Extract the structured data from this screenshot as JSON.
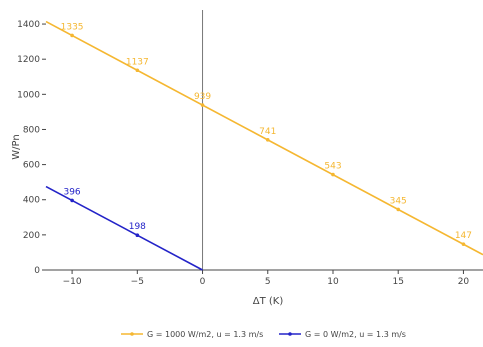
{
  "chart_data": {
    "type": "line",
    "xlabel": "ΔT (K)",
    "ylabel": "W/Pn",
    "xlim": [
      -12,
      21.5
    ],
    "ylim": [
      0,
      1480
    ],
    "x_ticks": [
      -10,
      -5,
      0,
      5,
      10,
      15,
      20
    ],
    "x_tick_labels": [
      "−10",
      "−5",
      "0",
      "5",
      "10",
      "15",
      "20"
    ],
    "y_ticks": [
      0,
      200,
      400,
      600,
      800,
      1000,
      1200,
      1400
    ],
    "y_tick_labels": [
      "0",
      "200",
      "400",
      "600",
      "800",
      "1000",
      "1200",
      "1400"
    ],
    "grid": false,
    "zero_line_vertical": true,
    "legend_position": "bottom-center",
    "series": [
      {
        "name": "G = 1000 W/m2, u = 1.3 m/s",
        "color": "#F5B731",
        "x": [
          -12,
          21.5
        ],
        "y": [
          1414,
          87
        ],
        "labeled_points": [
          {
            "x": -10,
            "y": 1335,
            "label": "1335"
          },
          {
            "x": -5,
            "y": 1137,
            "label": "1137"
          },
          {
            "x": 0,
            "y": 939,
            "label": "939"
          },
          {
            "x": 5,
            "y": 741,
            "label": "741"
          },
          {
            "x": 10,
            "y": 543,
            "label": "543"
          },
          {
            "x": 15,
            "y": 345,
            "label": "345"
          },
          {
            "x": 20,
            "y": 147,
            "label": "147"
          }
        ]
      },
      {
        "name": "G = 0 W/m2, u = 1.3 m/s",
        "color": "#2323C8",
        "x": [
          -12,
          0
        ],
        "y": [
          475,
          0
        ],
        "labeled_points": [
          {
            "x": -10,
            "y": 396,
            "label": "396"
          },
          {
            "x": -5,
            "y": 198,
            "label": "198"
          }
        ]
      }
    ]
  }
}
